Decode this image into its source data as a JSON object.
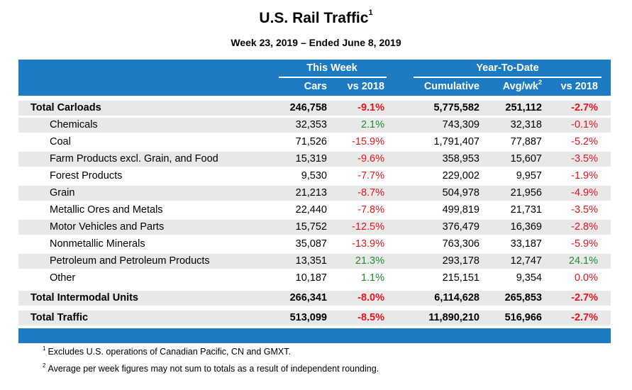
{
  "title": "U.S. Rail Traffic",
  "title_sup": "1",
  "subtitle": "Week 23, 2019 – Ended June 8, 2019",
  "groups": {
    "this_week": "This Week",
    "ytd": "Year-To-Date"
  },
  "columns": {
    "cars": "Cars",
    "vs2018_week": "vs 2018",
    "cumulative": "Cumulative",
    "avg_wk": "Avg/wk",
    "avg_wk_sup": "2",
    "vs2018_ytd": "vs 2018"
  },
  "rows": [
    {
      "label": "Total Carloads",
      "cars": "246,758",
      "wk_pct": "-9.1%",
      "cum": "5,775,582",
      "avg": "251,112",
      "ytd_pct": "-2.7%",
      "kind": "total"
    },
    {
      "label": "Chemicals",
      "cars": "32,353",
      "wk_pct": "2.1%",
      "cum": "743,309",
      "avg": "32,318",
      "ytd_pct": "-0.1%",
      "kind": "sub"
    },
    {
      "label": "Coal",
      "cars": "71,526",
      "wk_pct": "-15.9%",
      "cum": "1,791,407",
      "avg": "77,887",
      "ytd_pct": "-5.2%",
      "kind": "sub"
    },
    {
      "label": "Farm Products excl. Grain, and Food",
      "cars": "15,319",
      "wk_pct": "-9.6%",
      "cum": "358,953",
      "avg": "15,607",
      "ytd_pct": "-3.5%",
      "kind": "sub"
    },
    {
      "label": "Forest Products",
      "cars": "9,530",
      "wk_pct": "-7.7%",
      "cum": "229,002",
      "avg": "9,957",
      "ytd_pct": "-1.9%",
      "kind": "sub"
    },
    {
      "label": "Grain",
      "cars": "21,213",
      "wk_pct": "-8.7%",
      "cum": "504,978",
      "avg": "21,956",
      "ytd_pct": "-4.9%",
      "kind": "sub"
    },
    {
      "label": "Metallic Ores and Metals",
      "cars": "22,440",
      "wk_pct": "-7.8%",
      "cum": "499,819",
      "avg": "21,731",
      "ytd_pct": "-3.5%",
      "kind": "sub"
    },
    {
      "label": "Motor Vehicles and Parts",
      "cars": "15,752",
      "wk_pct": "-12.5%",
      "cum": "376,479",
      "avg": "16,369",
      "ytd_pct": "-2.8%",
      "kind": "sub"
    },
    {
      "label": "Nonmetallic Minerals",
      "cars": "35,087",
      "wk_pct": "-13.9%",
      "cum": "763,306",
      "avg": "33,187",
      "ytd_pct": "-5.9%",
      "kind": "sub"
    },
    {
      "label": "Petroleum and Petroleum Products",
      "cars": "13,351",
      "wk_pct": "21.3%",
      "cum": "293,178",
      "avg": "12,747",
      "ytd_pct": "24.1%",
      "kind": "sub"
    },
    {
      "label": "Other",
      "cars": "10,187",
      "wk_pct": "1.1%",
      "cum": "215,151",
      "avg": "9,354",
      "ytd_pct": "0.0%",
      "kind": "sub"
    },
    {
      "label": "Total Intermodal Units",
      "cars": "266,341",
      "wk_pct": "-8.0%",
      "cum": "6,114,628",
      "avg": "265,853",
      "ytd_pct": "-2.7%",
      "kind": "total"
    },
    {
      "label": "Total Traffic",
      "cars": "513,099",
      "wk_pct": "-8.5%",
      "cum": "11,890,210",
      "avg": "516,966",
      "ytd_pct": "-2.7%",
      "kind": "total"
    }
  ],
  "footnotes": [
    {
      "mark": "1",
      "text": "Excludes U.S. operations of Canadian Pacific, CN and GMXT."
    },
    {
      "mark": "2",
      "text": "Average per week figures may not sum to totals as a result of independent rounding."
    }
  ],
  "colors": {
    "header_blue": "#1c7bc3",
    "negative": "#e8141b",
    "positive": "#1e8c2e",
    "row_shade": "#e8e8e8"
  }
}
